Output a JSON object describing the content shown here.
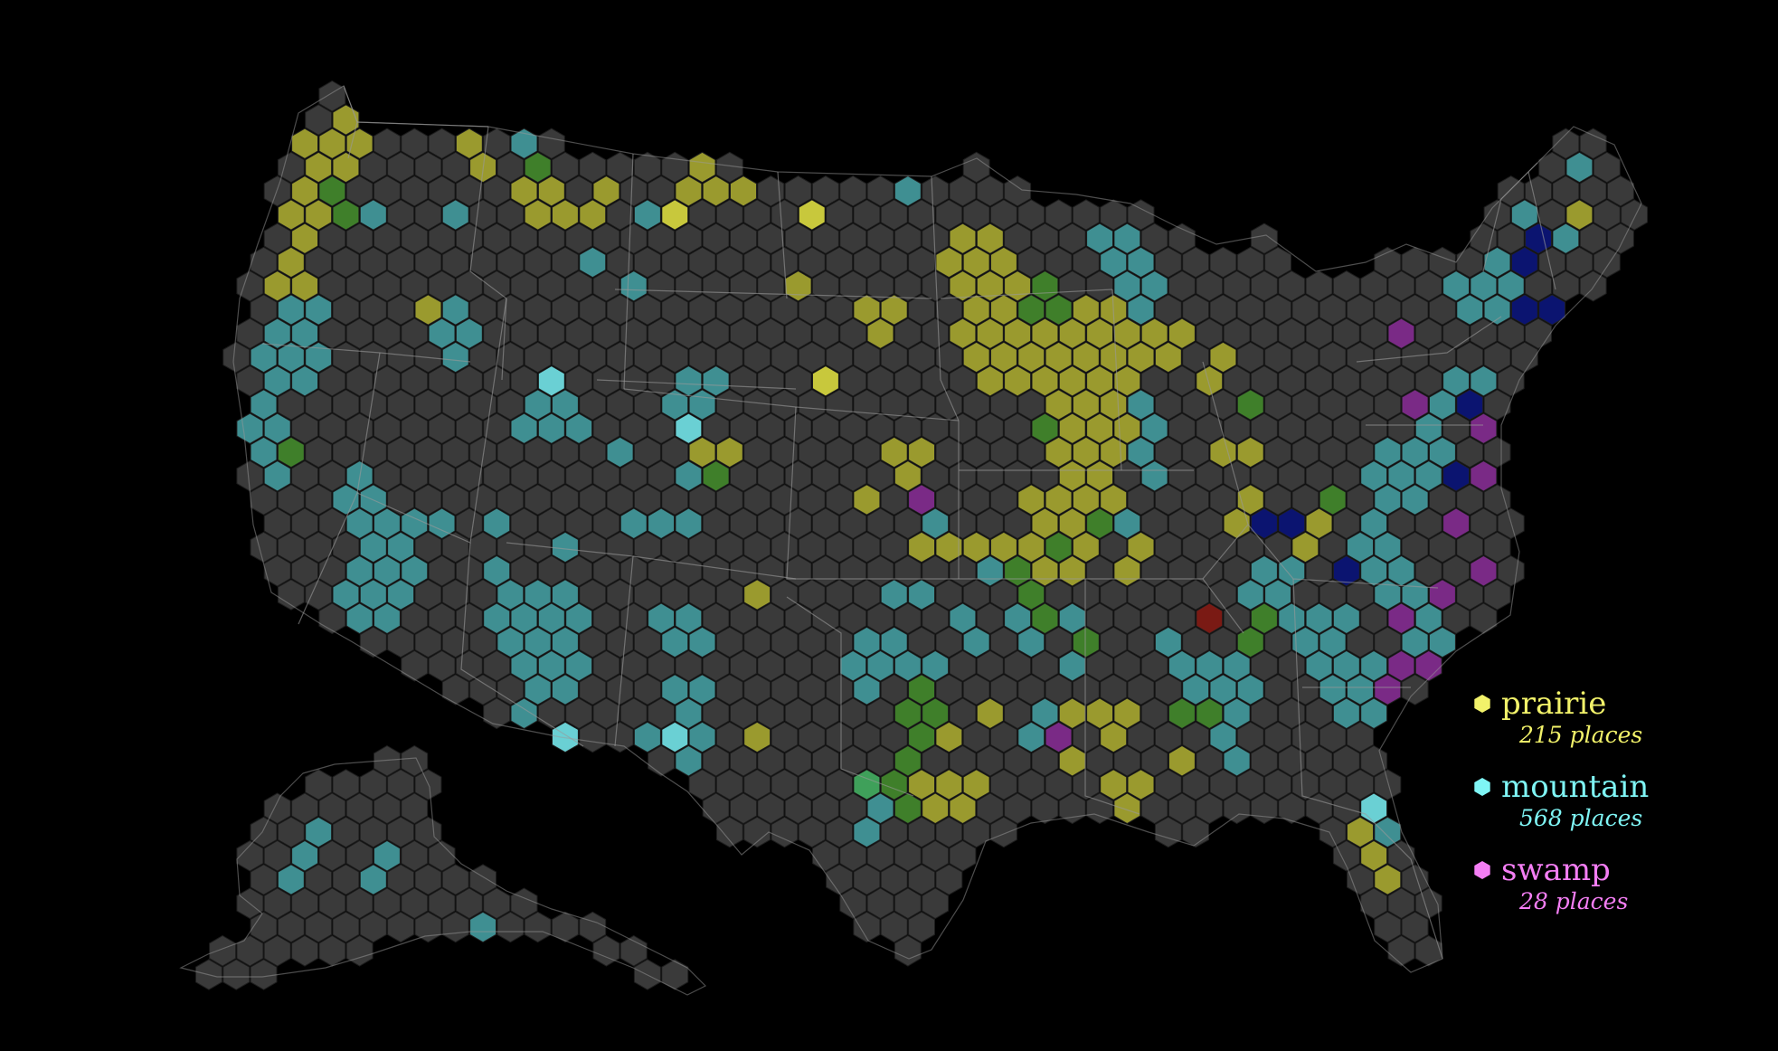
{
  "map": {
    "colors": {
      "background": "#000000",
      "empty_hex": "#3a3a3a",
      "hex_stroke": "#1e1e1e",
      "state_border": "#9a9a9a",
      "prairie": "#9a9a2e",
      "prairie_bright": "#c8c83c",
      "mountain": "#3f8f92",
      "mountain_bright": "#6ad0d4",
      "swamp": "#7a2a86",
      "forest": "#3f7f2a",
      "forest_bright": "#3fa05a",
      "water": "#0b1470",
      "desert": "#7a1a14"
    }
  },
  "legend": {
    "items": [
      {
        "icon": "hexagon-icon",
        "name": "prairie",
        "count": "215 places",
        "color": "#f2f26a"
      },
      {
        "icon": "hexagon-icon",
        "name": "mountain",
        "count": "568 places",
        "color": "#7ff5f5"
      },
      {
        "icon": "hexagon-icon",
        "name": "swamp",
        "count": "28 places",
        "color": "#f47ef4"
      }
    ]
  }
}
